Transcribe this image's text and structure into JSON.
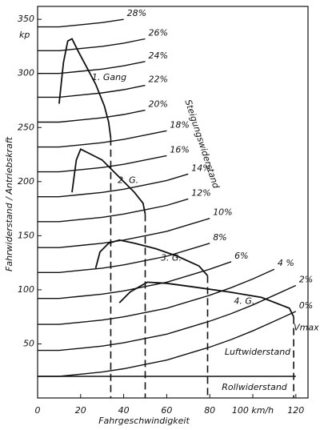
{
  "chart_data": {
    "type": "line",
    "color": "#111111",
    "x_label": "Fahrgeschwindigkeit",
    "y_label": "Fahrwiderstand / Antriebskraft",
    "y_unit": "kp",
    "xlim": [
      0,
      125
    ],
    "ylim": [
      0,
      360
    ],
    "xticks": [
      0,
      20,
      40,
      60,
      80,
      {
        "value": 100,
        "label": "100 km/h"
      },
      120
    ],
    "yticks": [
      50,
      100,
      150,
      200,
      250,
      300,
      350
    ],
    "annotations": {
      "grade": "Steigungswiderstand",
      "air": "Luftwiderstand",
      "roll": "Rollwiderstand",
      "vmax": "Vmax"
    },
    "series": [
      {
        "name": "0%",
        "x": [
          0,
          10,
          20,
          30,
          40,
          50,
          60,
          70,
          80,
          90,
          100,
          110,
          120
        ],
        "values": [
          20,
          20,
          22,
          24,
          27,
          31,
          35,
          41,
          47,
          54,
          62,
          71,
          80
        ]
      },
      {
        "name": "2%",
        "x": [
          0,
          10,
          20,
          30,
          40,
          50,
          60,
          70,
          80,
          90,
          100,
          110,
          120
        ],
        "values": [
          44,
          44,
          46,
          48,
          51,
          55,
          59,
          65,
          71,
          78,
          86,
          95,
          104
        ]
      },
      {
        "name": "4 %",
        "x": [
          0,
          10,
          20,
          30,
          40,
          50,
          60,
          70,
          80,
          90,
          100,
          110
        ],
        "values": [
          68,
          68,
          70,
          72,
          75,
          79,
          83,
          89,
          95,
          102,
          110,
          119
        ]
      },
      {
        "name": "6%",
        "x": [
          0,
          10,
          20,
          30,
          40,
          50,
          60,
          70,
          80,
          90
        ],
        "values": [
          92,
          92,
          94,
          96,
          99,
          103,
          107,
          113,
          119,
          126
        ]
      },
      {
        "name": "8%",
        "x": [
          0,
          10,
          20,
          30,
          40,
          50,
          60,
          70,
          80
        ],
        "values": [
          116,
          116,
          118,
          120,
          123,
          127,
          131,
          137,
          143
        ]
      },
      {
        "name": "10%",
        "x": [
          0,
          10,
          20,
          30,
          40,
          50,
          60,
          70,
          80
        ],
        "values": [
          139,
          139,
          141,
          143,
          146,
          150,
          154,
          160,
          166
        ]
      },
      {
        "name": "12%",
        "x": [
          0,
          10,
          20,
          30,
          40,
          50,
          60,
          70
        ],
        "values": [
          163,
          163,
          165,
          167,
          170,
          174,
          178,
          184
        ]
      },
      {
        "name": "14%",
        "x": [
          0,
          10,
          20,
          30,
          40,
          50,
          60,
          70
        ],
        "values": [
          186,
          186,
          188,
          190,
          193,
          197,
          201,
          207
        ]
      },
      {
        "name": "16%",
        "x": [
          0,
          10,
          20,
          30,
          40,
          50,
          60
        ],
        "values": [
          209,
          209,
          211,
          213,
          216,
          220,
          224
        ]
      },
      {
        "name": "18%",
        "x": [
          0,
          10,
          20,
          30,
          40,
          50,
          60
        ],
        "values": [
          232,
          232,
          234,
          236,
          239,
          243,
          247
        ]
      },
      {
        "name": "20%",
        "x": [
          0,
          10,
          20,
          30,
          40,
          50
        ],
        "values": [
          255,
          255,
          257,
          259,
          262,
          266
        ]
      },
      {
        "name": "22%",
        "x": [
          0,
          10,
          20,
          30,
          40,
          50
        ],
        "values": [
          278,
          278,
          280,
          282,
          285,
          289
        ]
      },
      {
        "name": "24%",
        "x": [
          0,
          10,
          20,
          30,
          40,
          50
        ],
        "values": [
          300,
          300,
          302,
          304,
          307,
          311
        ]
      },
      {
        "name": "26%",
        "x": [
          0,
          10,
          20,
          30,
          40,
          50
        ],
        "values": [
          321,
          321,
          323,
          325,
          328,
          332
        ]
      },
      {
        "name": "28%",
        "x": [
          0,
          10,
          20,
          30,
          40
        ],
        "values": [
          343,
          343,
          345,
          347,
          350
        ]
      }
    ],
    "roll": {
      "x": [
        0,
        120
      ],
      "values": [
        20,
        20
      ]
    },
    "gears": [
      {
        "name": "1. Gang",
        "x": [
          10,
          12,
          14,
          16,
          19,
          23,
          27,
          31,
          33,
          34
        ],
        "values": [
          272,
          310,
          330,
          332,
          320,
          305,
          290,
          270,
          255,
          240
        ]
      },
      {
        "name": "2. G.",
        "x": [
          16,
          18,
          20,
          25,
          30,
          35,
          40,
          45,
          49,
          50
        ],
        "values": [
          190,
          220,
          230,
          225,
          220,
          210,
          200,
          190,
          180,
          170
        ]
      },
      {
        "name": "3. G.",
        "x": [
          27,
          29,
          33,
          38,
          45,
          55,
          65,
          75,
          79
        ],
        "values": [
          120,
          135,
          143,
          146,
          143,
          138,
          131,
          122,
          113
        ]
      },
      {
        "name": "4. G.",
        "x": [
          38,
          43,
          51,
          60,
          71,
          89,
          104,
          117,
          119
        ],
        "values": [
          88,
          98,
          107,
          106,
          103,
          98,
          93,
          83,
          75
        ]
      }
    ]
  }
}
